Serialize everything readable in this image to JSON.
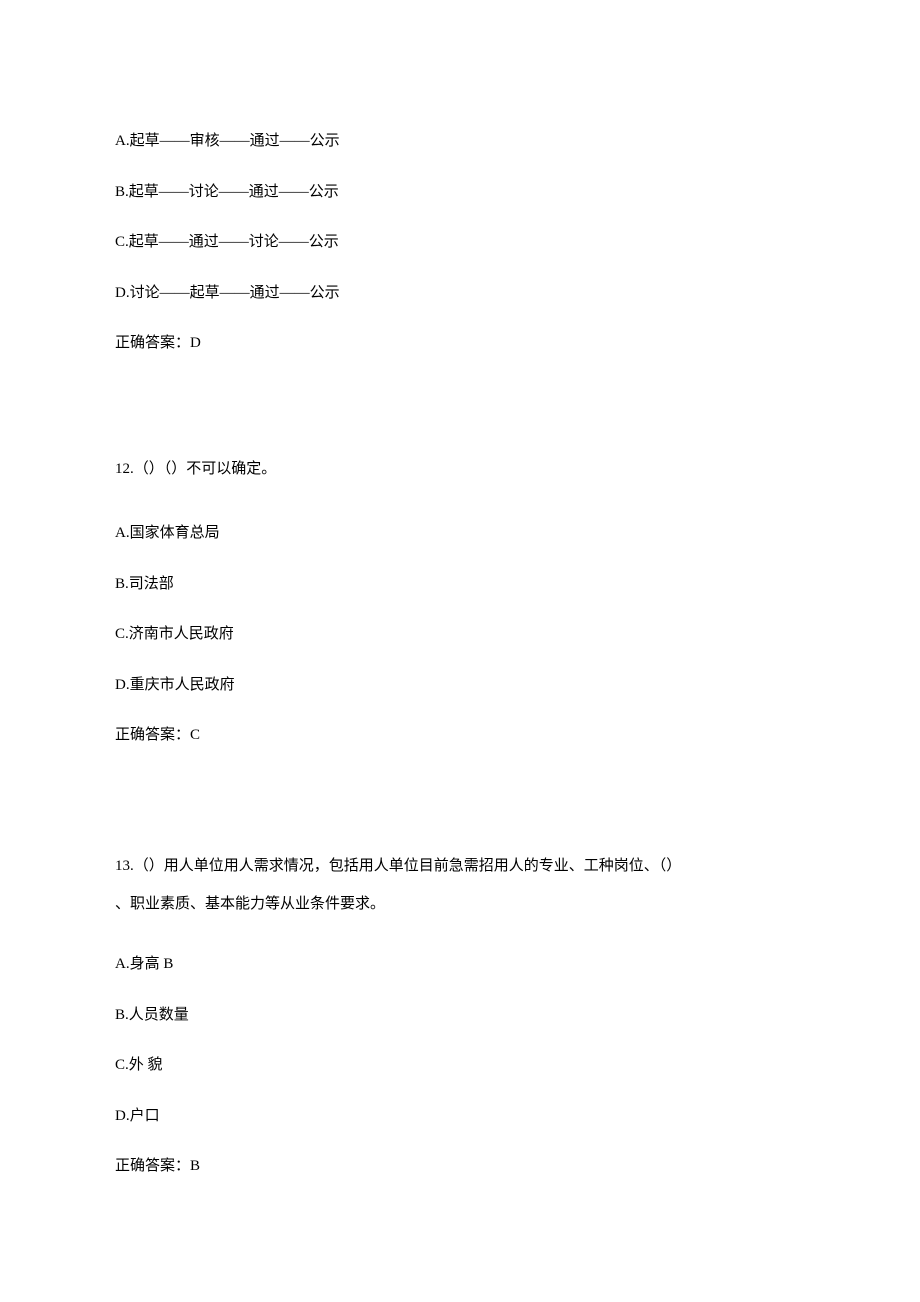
{
  "q11": {
    "options": {
      "A": "A.起草——审核——通过——公示",
      "B": "B.起草——讨论——通过——公示",
      "C": "C.起草——通过——讨论——公示",
      "D": "D.讨论——起草——通过——公示"
    },
    "answer": "正确答案：D"
  },
  "q12": {
    "stem": "12.（）（）不可以确定。",
    "options": {
      "A": "A.国家体育总局",
      "B": "B.司法部",
      "C": "C.济南市人民政府",
      "D": "D.重庆市人民政府"
    },
    "answer": "正确答案：C"
  },
  "q13": {
    "stem_line1": "13.（）用人单位用人需求情况，包括用人单位目前急需招用人的专业、工种岗位、（）",
    "stem_line2": "、职业素质、基本能力等从业条件要求。",
    "options": {
      "A": "A.身高 B",
      "B": "B.人员数量",
      "C": "C.外 貌",
      "D": "D.户口"
    },
    "answer": "正确答案：B"
  }
}
